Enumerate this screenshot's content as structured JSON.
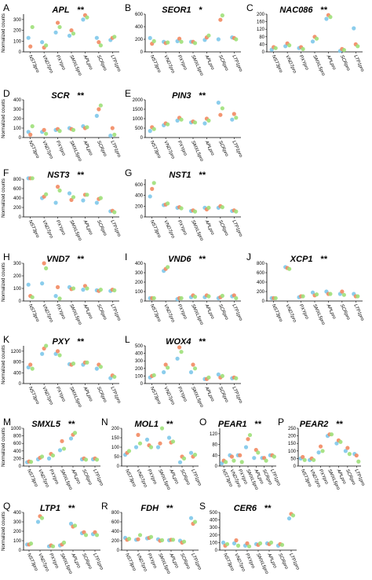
{
  "figure": {
    "ylabel": "Normalized counts",
    "categories": [
      "NST3pro",
      "VND7pro",
      "PXYpro",
      "SMXL5pro",
      "APLpro",
      "SCRpro",
      "LTP1pro"
    ],
    "colors": {
      "blue": "#7ec8ea",
      "orange": "#f28a62",
      "green": "#9ee07a"
    }
  },
  "chart_data": [
    {
      "type": "scatter",
      "panel": "A",
      "title": "APL",
      "stars": "**",
      "ylim": [
        0,
        350
      ],
      "yticks": [
        0,
        100,
        200,
        300
      ],
      "series": [
        {
          "color": "blue",
          "values": [
            130,
            90,
            180,
            150,
            300,
            130,
            110
          ]
        },
        {
          "color": "orange",
          "values": [
            50,
            40,
            270,
            200,
            340,
            90,
            130
          ]
        },
        {
          "color": "green",
          "values": [
            230,
            60,
            230,
            170,
            320,
            60,
            140
          ]
        }
      ]
    },
    {
      "type": "scatter",
      "panel": "B",
      "title": "SEOR1",
      "stars": "*",
      "ylim": [
        0,
        600
      ],
      "yticks": [
        0,
        200,
        400,
        600
      ],
      "series": [
        {
          "color": "blue",
          "values": [
            220,
            160,
            170,
            160,
            190,
            200,
            230
          ]
        },
        {
          "color": "orange",
          "values": [
            130,
            140,
            210,
            160,
            230,
            510,
            220
          ]
        },
        {
          "color": "green",
          "values": [
            170,
            150,
            160,
            140,
            260,
            580,
            200
          ]
        }
      ]
    },
    {
      "type": "scatter",
      "panel": "C",
      "title": "NAC086",
      "stars": "**",
      "ylim": [
        0,
        200
      ],
      "yticks": [
        0,
        40,
        80,
        120,
        160,
        200
      ],
      "series": [
        {
          "color": "blue",
          "values": [
            12,
            30,
            20,
            55,
            175,
            5,
            125
          ]
        },
        {
          "color": "orange",
          "values": [
            25,
            45,
            25,
            80,
            195,
            15,
            40
          ]
        },
        {
          "color": "green",
          "values": [
            20,
            35,
            15,
            70,
            185,
            10,
            30
          ]
        }
      ]
    },
    {
      "type": "scatter",
      "panel": "D",
      "title": "SCR",
      "stars": "**",
      "ylim": [
        0,
        400
      ],
      "yticks": [
        0,
        100,
        200,
        300,
        400
      ],
      "series": [
        {
          "color": "blue",
          "values": [
            60,
            60,
            80,
            100,
            120,
            230,
            20
          ]
        },
        {
          "color": "orange",
          "values": [
            30,
            80,
            90,
            90,
            100,
            300,
            100
          ]
        },
        {
          "color": "green",
          "values": [
            120,
            40,
            70,
            80,
            110,
            340,
            30
          ]
        }
      ]
    },
    {
      "type": "scatter",
      "panel": "E",
      "title": "PIN3",
      "stars": "**",
      "ylim": [
        0,
        2000
      ],
      "yticks": [
        0,
        500,
        1000,
        1500,
        2000
      ],
      "series": [
        {
          "color": "blue",
          "values": [
            350,
            650,
            900,
            800,
            750,
            1850,
            950
          ]
        },
        {
          "color": "orange",
          "values": [
            550,
            750,
            1050,
            850,
            1000,
            1200,
            1250
          ]
        },
        {
          "color": "green",
          "values": [
            450,
            700,
            950,
            800,
            900,
            1550,
            1050
          ]
        }
      ]
    },
    {
      "type": "scatter",
      "panel": "F",
      "title": "NST3",
      "stars": "**",
      "ylim": [
        0,
        800
      ],
      "yticks": [
        0,
        200,
        400,
        600,
        800
      ],
      "series": [
        {
          "color": "blue",
          "values": [
            820,
            400,
            300,
            500,
            350,
            300,
            120
          ]
        },
        {
          "color": "orange",
          "values": [
            820,
            430,
            640,
            360,
            470,
            380,
            130
          ]
        },
        {
          "color": "green",
          "values": [
            820,
            480,
            560,
            420,
            470,
            400,
            100
          ]
        }
      ]
    },
    {
      "type": "scatter",
      "panel": "G",
      "title": "NST1",
      "stars": "**",
      "ylim": [
        0,
        700
      ],
      "yticks": [
        0,
        200,
        400,
        600
      ],
      "series": [
        {
          "color": "blue",
          "values": [
            380,
            220,
            170,
            110,
            170,
            170,
            110
          ]
        },
        {
          "color": "orange",
          "values": [
            520,
            230,
            180,
            120,
            140,
            200,
            120
          ]
        },
        {
          "color": "green",
          "values": [
            630,
            250,
            160,
            100,
            170,
            180,
            100
          ]
        }
      ]
    },
    {
      "type": "scatter",
      "panel": "H",
      "title": "VND7",
      "stars": "**",
      "ylim": [
        0,
        300
      ],
      "yticks": [
        0,
        100,
        200,
        300
      ],
      "series": [
        {
          "color": "blue",
          "values": [
            130,
            140,
            40,
            110,
            90,
            85,
            80
          ]
        },
        {
          "color": "orange",
          "values": [
            40,
            300,
            110,
            95,
            120,
            80,
            90
          ]
        },
        {
          "color": "green",
          "values": [
            30,
            260,
            20,
            100,
            100,
            90,
            85
          ]
        }
      ]
    },
    {
      "type": "scatter",
      "panel": "I",
      "title": "VND6",
      "stars": "**",
      "ylim": [
        0,
        400
      ],
      "yticks": [
        0,
        100,
        200,
        300,
        400
      ],
      "series": [
        {
          "color": "blue",
          "values": [
            30,
            320,
            20,
            40,
            40,
            30,
            50
          ]
        },
        {
          "color": "orange",
          "values": [
            30,
            340,
            30,
            60,
            60,
            40,
            60
          ]
        },
        {
          "color": "green",
          "values": [
            30,
            360,
            30,
            45,
            50,
            55,
            30
          ]
        }
      ]
    },
    {
      "type": "scatter",
      "panel": "J",
      "title": "XCP1",
      "stars": "**",
      "ylim": [
        0,
        800
      ],
      "yticks": [
        0,
        200,
        400,
        600,
        800
      ],
      "series": [
        {
          "color": "blue",
          "values": [
            60,
            720,
            80,
            180,
            200,
            150,
            150
          ]
        },
        {
          "color": "orange",
          "values": [
            60,
            700,
            100,
            120,
            150,
            200,
            100
          ]
        },
        {
          "color": "green",
          "values": [
            60,
            680,
            100,
            140,
            150,
            130,
            100
          ]
        }
      ]
    },
    {
      "type": "scatter",
      "panel": "K",
      "title": "PXY",
      "stars": "**",
      "ylim": [
        0,
        1400
      ],
      "yticks": [
        0,
        400,
        800,
        1200
      ],
      "series": [
        {
          "color": "blue",
          "values": [
            600,
            1100,
            1100,
            720,
            700,
            550,
            200
          ]
        },
        {
          "color": "orange",
          "values": [
            700,
            1300,
            1200,
            700,
            780,
            700,
            300
          ]
        },
        {
          "color": "green",
          "values": [
            550,
            1400,
            1050,
            740,
            780,
            620,
            250
          ]
        }
      ]
    },
    {
      "type": "scatter",
      "panel": "L",
      "title": "WOX4",
      "stars": "**",
      "ylim": [
        0,
        500
      ],
      "yticks": [
        0,
        100,
        200,
        300,
        400,
        500
      ],
      "series": [
        {
          "color": "blue",
          "values": [
            80,
            150,
            330,
            150,
            60,
            120,
            70
          ]
        },
        {
          "color": "orange",
          "values": [
            100,
            250,
            480,
            250,
            60,
            80,
            80
          ]
        },
        {
          "color": "green",
          "values": [
            110,
            210,
            420,
            200,
            80,
            100,
            70
          ]
        }
      ]
    },
    {
      "type": "scatter",
      "panel": "M",
      "title": "SMXL5",
      "stars": "**",
      "ylim": [
        0,
        1000
      ],
      "yticks": [
        0,
        200,
        400,
        600,
        800,
        1000
      ],
      "series": [
        {
          "color": "blue",
          "values": [
            100,
            180,
            200,
            420,
            730,
            180,
            180
          ]
        },
        {
          "color": "orange",
          "values": [
            120,
            220,
            320,
            660,
            830,
            200,
            200
          ]
        },
        {
          "color": "green",
          "values": [
            110,
            250,
            280,
            460,
            880,
            170,
            170
          ]
        }
      ]
    },
    {
      "type": "scatter",
      "panel": "N",
      "title": "MOL1",
      "stars": "**",
      "ylim": [
        0,
        200
      ],
      "yticks": [
        0,
        50,
        100,
        150,
        200
      ],
      "series": [
        {
          "color": "blue",
          "values": [
            60,
            100,
            140,
            100,
            150,
            20,
            70
          ]
        },
        {
          "color": "orange",
          "values": [
            70,
            165,
            110,
            120,
            125,
            50,
            50
          ]
        },
        {
          "color": "green",
          "values": [
            80,
            120,
            100,
            200,
            130,
            40,
            60
          ]
        }
      ]
    },
    {
      "type": "scatter",
      "panel": "O",
      "title": "PEAR1",
      "stars": "**",
      "ylim": [
        0,
        140
      ],
      "yticks": [
        0,
        40,
        80,
        120
      ],
      "series": [
        {
          "color": "blue",
          "values": [
            10,
            40,
            40,
            70,
            30,
            30,
            40
          ]
        },
        {
          "color": "orange",
          "values": [
            20,
            35,
            40,
            100,
            60,
            30,
            40
          ]
        },
        {
          "color": "green",
          "values": [
            15,
            20,
            15,
            115,
            50,
            20,
            35
          ]
        }
      ]
    },
    {
      "type": "scatter",
      "panel": "P",
      "title": "PEAR2",
      "stars": "**",
      "ylim": [
        0,
        250
      ],
      "yticks": [
        0,
        50,
        100,
        150,
        200,
        250
      ],
      "series": [
        {
          "color": "blue",
          "values": [
            50,
            40,
            90,
            200,
            150,
            100,
            80
          ]
        },
        {
          "color": "orange",
          "values": [
            60,
            50,
            130,
            210,
            170,
            120,
            70
          ]
        },
        {
          "color": "green",
          "values": [
            40,
            40,
            100,
            210,
            160,
            80,
            30
          ]
        }
      ]
    },
    {
      "type": "scatter",
      "panel": "Q",
      "title": "LTP1",
      "stars": "**",
      "ylim": [
        0,
        400
      ],
      "yticks": [
        0,
        100,
        200,
        300,
        400
      ],
      "series": [
        {
          "color": "blue",
          "values": [
            60,
            300,
            40,
            50,
            280,
            180,
            170
          ]
        },
        {
          "color": "orange",
          "values": [
            60,
            360,
            50,
            60,
            250,
            190,
            190
          ]
        },
        {
          "color": "green",
          "values": [
            70,
            340,
            40,
            80,
            260,
            160,
            160
          ]
        }
      ]
    },
    {
      "type": "scatter",
      "panel": "R",
      "title": "FDH",
      "stars": "**",
      "ylim": [
        0,
        800
      ],
      "yticks": [
        0,
        200,
        400,
        600,
        800
      ],
      "series": [
        {
          "color": "blue",
          "values": [
            260,
            220,
            250,
            230,
            210,
            200,
            680
          ]
        },
        {
          "color": "orange",
          "values": [
            220,
            230,
            260,
            200,
            220,
            160,
            560
          ]
        },
        {
          "color": "green",
          "values": [
            240,
            320,
            280,
            210,
            220,
            180,
            600
          ]
        }
      ]
    },
    {
      "type": "scatter",
      "panel": "S",
      "title": "CER6",
      "stars": "**",
      "ylim": [
        0,
        500
      ],
      "yticks": [
        0,
        100,
        200,
        300,
        400,
        500
      ],
      "series": [
        {
          "color": "blue",
          "values": [
            100,
            90,
            60,
            80,
            90,
            60,
            420
          ]
        },
        {
          "color": "orange",
          "values": [
            60,
            130,
            90,
            70,
            80,
            80,
            480
          ]
        },
        {
          "color": "green",
          "values": [
            80,
            60,
            50,
            90,
            100,
            70,
            460
          ]
        }
      ]
    }
  ]
}
